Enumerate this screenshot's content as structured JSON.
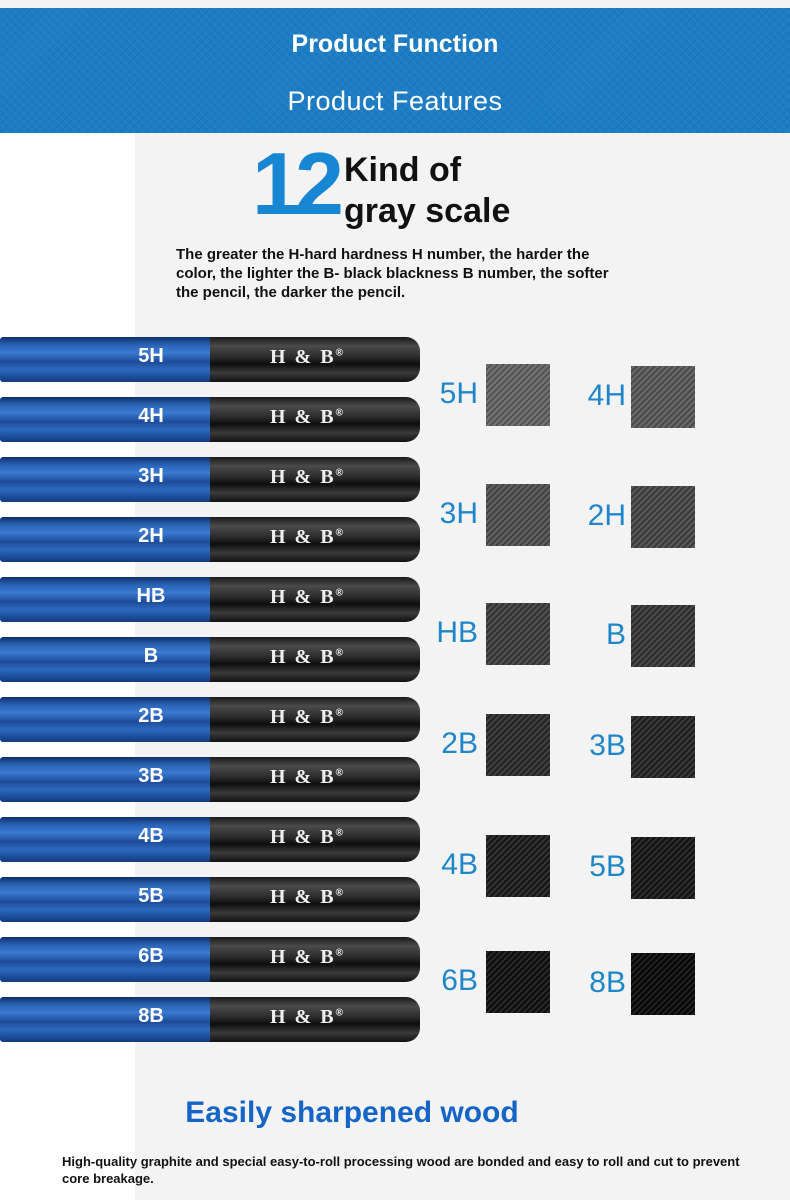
{
  "header": {
    "title": "Product Function",
    "subtitle": "Product Features"
  },
  "headline": {
    "number": "12",
    "line1": "Kind of",
    "line2": "gray scale"
  },
  "description": "The greater the H-hard hardness H number, the harder the color, the lighter the B- black blackness B number, the softer the pencil, the darker the pencil.",
  "pencils": [
    {
      "grade": "5H",
      "brand": "H & B",
      "reg": "®"
    },
    {
      "grade": "4H",
      "brand": "H & B",
      "reg": "®"
    },
    {
      "grade": "3H",
      "brand": "H & B",
      "reg": "®"
    },
    {
      "grade": "2H",
      "brand": "H & B",
      "reg": "®"
    },
    {
      "grade": "HB",
      "brand": "H & B",
      "reg": "®"
    },
    {
      "grade": "B",
      "brand": "H & B",
      "reg": "®"
    },
    {
      "grade": "2B",
      "brand": "H & B",
      "reg": "®"
    },
    {
      "grade": "3B",
      "brand": "H & B",
      "reg": "®"
    },
    {
      "grade": "4B",
      "brand": "H & B",
      "reg": "®"
    },
    {
      "grade": "5B",
      "brand": "H & B",
      "reg": "®"
    },
    {
      "grade": "6B",
      "brand": "H & B",
      "reg": "®"
    },
    {
      "grade": "8B",
      "brand": "H & B",
      "reg": "®"
    }
  ],
  "swatches": [
    {
      "grade": "5H",
      "shade": "#6a6a6a"
    },
    {
      "grade": "4H",
      "shade": "#5e5e5e"
    },
    {
      "grade": "3H",
      "shade": "#555555"
    },
    {
      "grade": "2H",
      "shade": "#4c4c4c"
    },
    {
      "grade": "HB",
      "shade": "#424242"
    },
    {
      "grade": "B",
      "shade": "#3a3a3a"
    },
    {
      "grade": "2B",
      "shade": "#303030"
    },
    {
      "grade": "3B",
      "shade": "#282828"
    },
    {
      "grade": "4B",
      "shade": "#202020"
    },
    {
      "grade": "5B",
      "shade": "#1a1a1a"
    },
    {
      "grade": "6B",
      "shade": "#141414"
    },
    {
      "grade": "8B",
      "shade": "#0c0c0c"
    }
  ],
  "footer": {
    "title": "Easily sharpened wood",
    "description": "High-quality graphite and special easy-to-roll processing wood are bonded and easy to roll and cut to prevent core breakage."
  }
}
